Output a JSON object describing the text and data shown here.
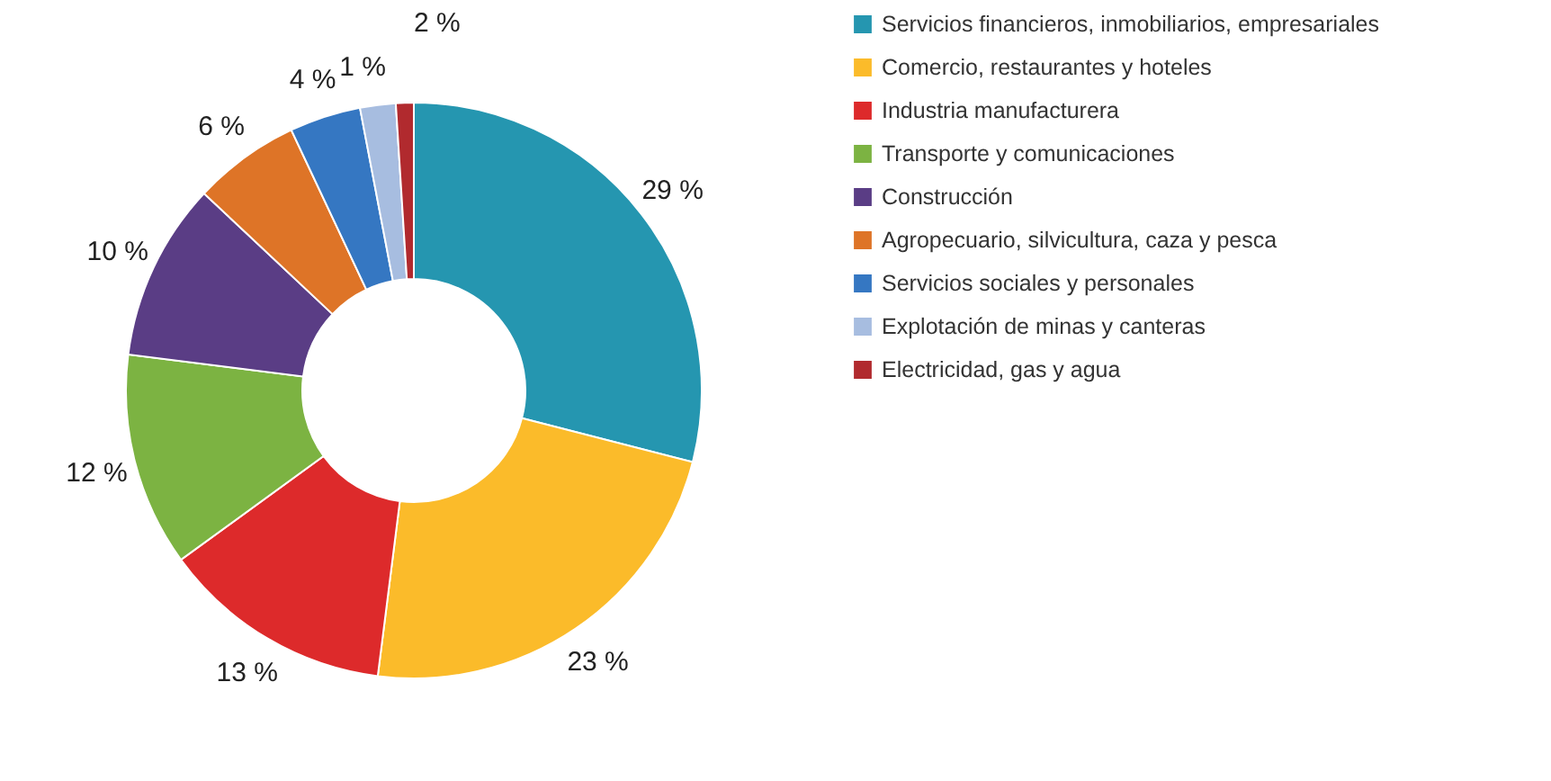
{
  "chart_data": {
    "type": "donut",
    "categories": [
      "Servicios financieros, inmobiliarios, empresariales",
      "Comercio, restaurantes y hoteles",
      "Industria manufacturera",
      "Transporte y comunicaciones",
      "Construcción",
      "Agropecuario, silvicultura, caza y pesca",
      "Servicios sociales y personales",
      "Explotación de minas y canteras",
      "Electricidad, gas y agua"
    ],
    "values": [
      29,
      23,
      13,
      12,
      10,
      6,
      4,
      2,
      1
    ],
    "colors": [
      "#2596b0",
      "#fbbb2a",
      "#dd2a2b",
      "#7cb342",
      "#5a3d85",
      "#de7427",
      "#3577c2",
      "#a7bde0",
      "#b12a2e"
    ],
    "value_labels": [
      "29 %",
      "23 %",
      "13 %",
      "12 %",
      "10 %",
      "6 %",
      "4 %",
      "2 %",
      "1 %"
    ],
    "legend": "right"
  }
}
